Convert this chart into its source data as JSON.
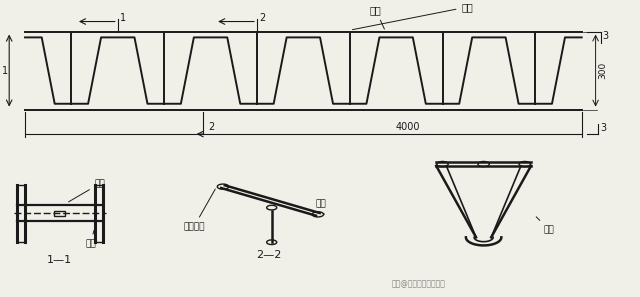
{
  "bg_color": "#f0efe8",
  "line_color": "#1a1a1a",
  "labels": {
    "shang_xian": "上弦",
    "fu_gan": "腹杆",
    "section_11": "1—1",
    "section_22": "2—2",
    "jian_ban1": "羀板",
    "fu_gan2": "腹杆",
    "jian_ban2": "羀板",
    "wu_mian": "屋盖坡度",
    "gang_long": "钉笼",
    "dim_4000": "4000",
    "dim_300": "300",
    "watermark": "头条@建筑工程资料查享"
  }
}
